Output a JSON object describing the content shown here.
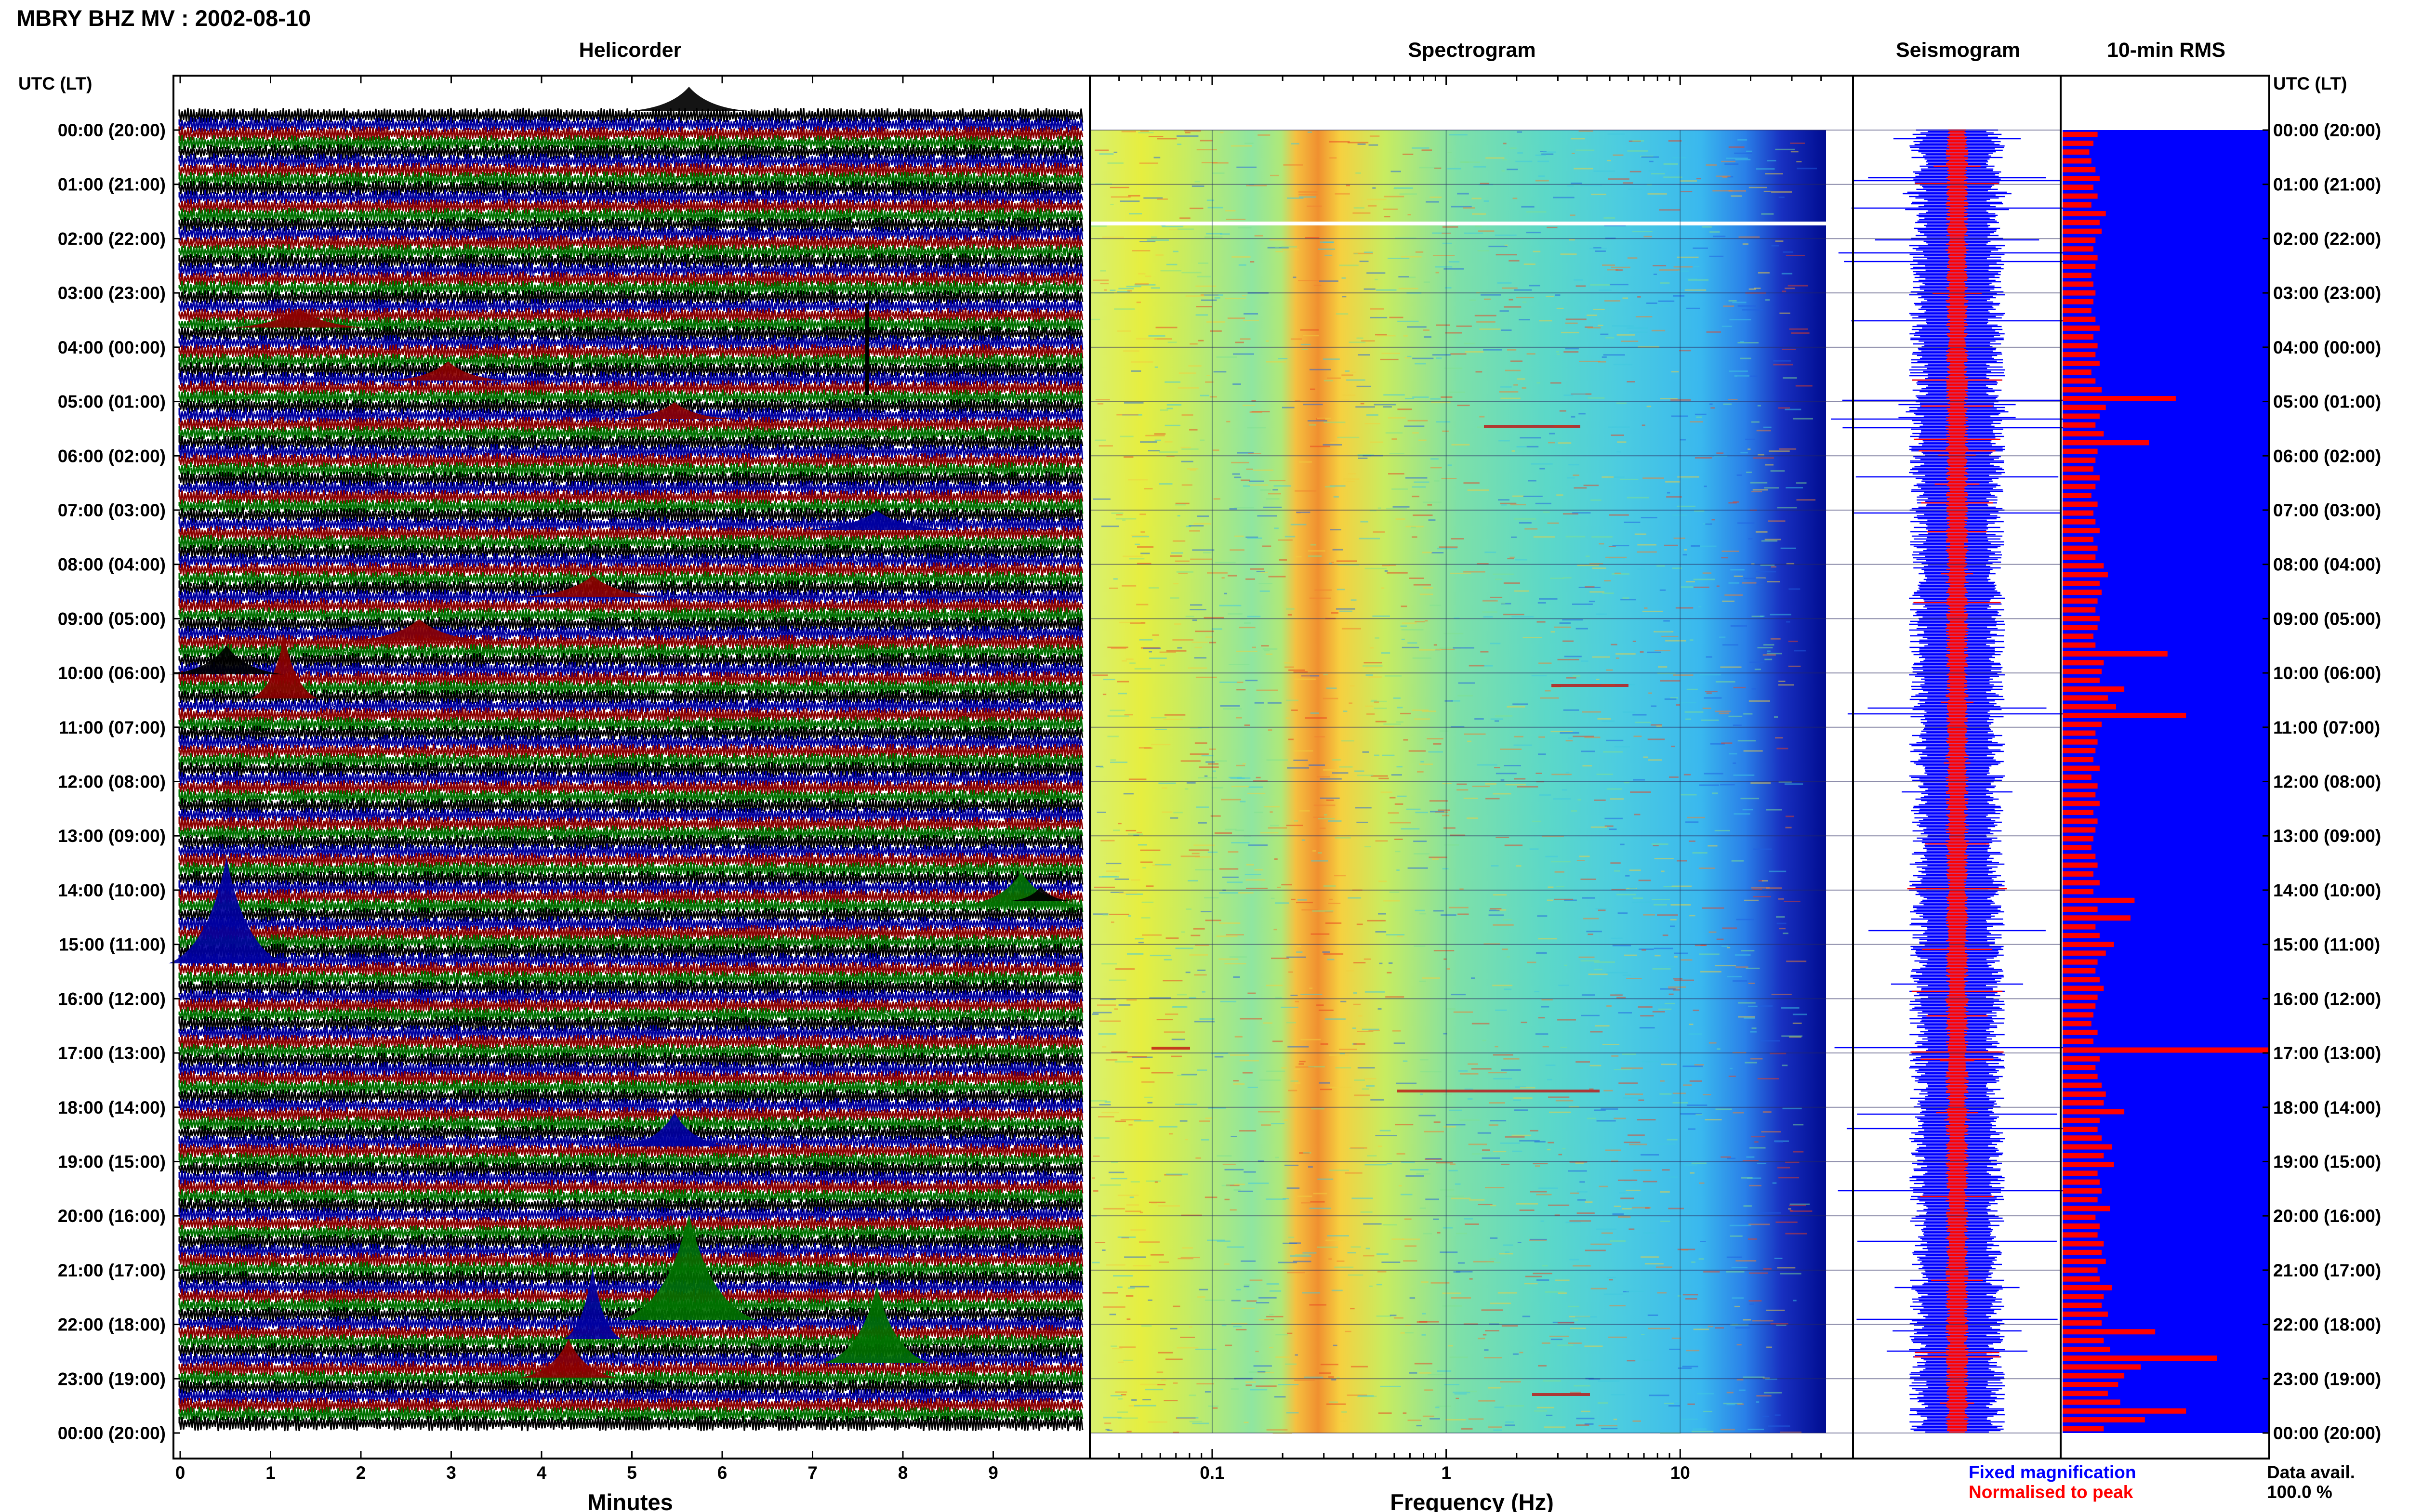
{
  "header": {
    "title": "MBRY BHZ MV : 2002-08-10",
    "tz_label_left": "UTC (LT)",
    "tz_label_right": "UTC (LT)"
  },
  "panels": {
    "helicorder": "Helicorder",
    "spectrogram": "Spectrogram",
    "seismogram": "Seismogram",
    "rms": "10-min RMS"
  },
  "axes": {
    "helicorder_xlabel": "Minutes",
    "helicorder_xticks": [
      "0",
      "1",
      "2",
      "3",
      "4",
      "5",
      "6",
      "7",
      "8",
      "9"
    ],
    "spectrogram_xlabel": "Frequency (Hz)",
    "spectrogram_xticks": [
      "0.1",
      "1",
      "10"
    ]
  },
  "time_labels": [
    "00:00 (20:00)",
    "01:00 (21:00)",
    "02:00 (22:00)",
    "03:00 (23:00)",
    "04:00 (00:00)",
    "05:00 (01:00)",
    "06:00 (02:00)",
    "07:00 (03:00)",
    "08:00 (04:00)",
    "09:00 (05:00)",
    "10:00 (06:00)",
    "11:00 (07:00)",
    "12:00 (08:00)",
    "13:00 (09:00)",
    "14:00 (10:00)",
    "15:00 (11:00)",
    "16:00 (12:00)",
    "17:00 (13:00)",
    "18:00 (14:00)",
    "19:00 (15:00)",
    "20:00 (16:00)",
    "21:00 (17:00)",
    "22:00 (18:00)",
    "23:00 (19:00)",
    "00:00 (20:00)"
  ],
  "legend": {
    "fixed": "Fixed magnification",
    "normalised": "Normalised to peak",
    "avail_label": "Data avail.",
    "avail_value": "100.0 %"
  },
  "colors": {
    "helicorder_traces": [
      "#000000",
      "#0000a0",
      "#8b0000",
      "#007000"
    ],
    "seis_blue": "#0000ff",
    "seis_red": "#ff0000",
    "rms_blue": "#0000ff",
    "rms_red": "#ff0000",
    "fixed_text": "#0000ff",
    "normalised_text": "#ff0000"
  },
  "chart_data": {
    "type": "rms-bars",
    "name": "10-min RMS",
    "interval_minutes": 10,
    "normalised_values": [
      0.17,
      0.15,
      0.13,
      0.14,
      0.16,
      0.18,
      0.15,
      0.17,
      0.14,
      0.21,
      0.18,
      0.19,
      0.16,
      0.15,
      0.17,
      0.16,
      0.14,
      0.15,
      0.16,
      0.15,
      0.14,
      0.16,
      0.18,
      0.15,
      0.17,
      0.16,
      0.18,
      0.14,
      0.16,
      0.19,
      0.55,
      0.21,
      0.18,
      0.16,
      0.2,
      0.42,
      0.17,
      0.16,
      0.15,
      0.18,
      0.16,
      0.14,
      0.17,
      0.15,
      0.16,
      0.18,
      0.15,
      0.17,
      0.16,
      0.2,
      0.22,
      0.18,
      0.19,
      0.17,
      0.16,
      0.18,
      0.17,
      0.15,
      0.16,
      0.51,
      0.2,
      0.19,
      0.18,
      0.3,
      0.22,
      0.26,
      0.6,
      0.19,
      0.16,
      0.17,
      0.16,
      0.15,
      0.18,
      0.14,
      0.17,
      0.16,
      0.18,
      0.15,
      0.17,
      0.16,
      0.15,
      0.14,
      0.16,
      0.17,
      0.15,
      0.18,
      0.15,
      0.35,
      0.17,
      0.33,
      0.16,
      0.18,
      0.25,
      0.21,
      0.17,
      0.16,
      0.18,
      0.2,
      0.17,
      0.16,
      0.15,
      0.14,
      0.17,
      0.15,
      1.0,
      0.18,
      0.16,
      0.17,
      0.19,
      0.21,
      0.2,
      0.3,
      0.18,
      0.17,
      0.19,
      0.24,
      0.2,
      0.25,
      0.17,
      0.18,
      0.19,
      0.17,
      0.23,
      0.16,
      0.18,
      0.17,
      0.2,
      0.19,
      0.21,
      0.17,
      0.18,
      0.24,
      0.2,
      0.19,
      0.22,
      0.19,
      0.45,
      0.2,
      0.23,
      0.75,
      0.38,
      0.3,
      0.27,
      0.22,
      0.28,
      0.6,
      0.4,
      0.2
    ]
  }
}
